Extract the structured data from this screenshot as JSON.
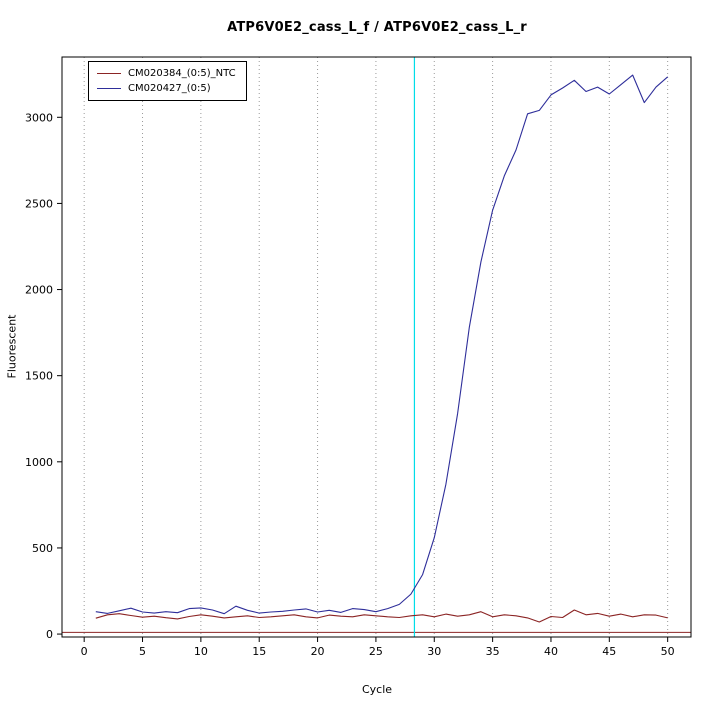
{
  "chart_data": {
    "type": "line",
    "title": "ATP6V0E2_cass_L_f / ATP6V0E2_cass_L_r",
    "xlabel": "Cycle",
    "ylabel": "Fluorescent",
    "xlim": [
      -1.9,
      52
    ],
    "ylim": [
      -17,
      3350
    ],
    "xticks": [
      0,
      5,
      10,
      15,
      20,
      25,
      30,
      35,
      40,
      45,
      50
    ],
    "yticks": [
      0,
      500,
      1000,
      1500,
      2000,
      2500,
      3000
    ],
    "grid": "vertical-dotted",
    "legend_position": "top-left",
    "threshold_line_y": 10,
    "threshold_line_color": "#8b2424",
    "ct_line_x": 28.3,
    "ct_line_color": "#00dde8",
    "x_start": 1,
    "series": [
      {
        "name": "CM020384_(0:5)_NTC",
        "color": "#8b2424",
        "values": [
          92,
          112,
          118,
          108,
          98,
          104,
          95,
          88,
          102,
          112,
          104,
          94,
          100,
          106,
          96,
          100,
          106,
          112,
          100,
          94,
          110,
          104,
          100,
          112,
          106,
          100,
          96,
          106,
          112,
          100,
          116,
          104,
          112,
          130,
          100,
          112,
          106,
          94,
          70,
          102,
          96,
          140,
          112,
          120,
          104,
          116,
          100,
          112,
          110,
          94
        ]
      },
      {
        "name": "CM020427_(0:5)",
        "color": "#2e2e9a",
        "values": [
          130,
          120,
          135,
          150,
          128,
          122,
          130,
          124,
          148,
          152,
          140,
          118,
          162,
          138,
          122,
          128,
          132,
          140,
          146,
          128,
          138,
          126,
          148,
          142,
          130,
          148,
          172,
          232,
          345,
          560,
          870,
          1280,
          1780,
          2160,
          2460,
          2660,
          2810,
          3020,
          3040,
          3130,
          3170,
          3215,
          3150,
          3175,
          3135,
          3190,
          3245,
          3085,
          3175,
          3235
        ]
      }
    ]
  }
}
